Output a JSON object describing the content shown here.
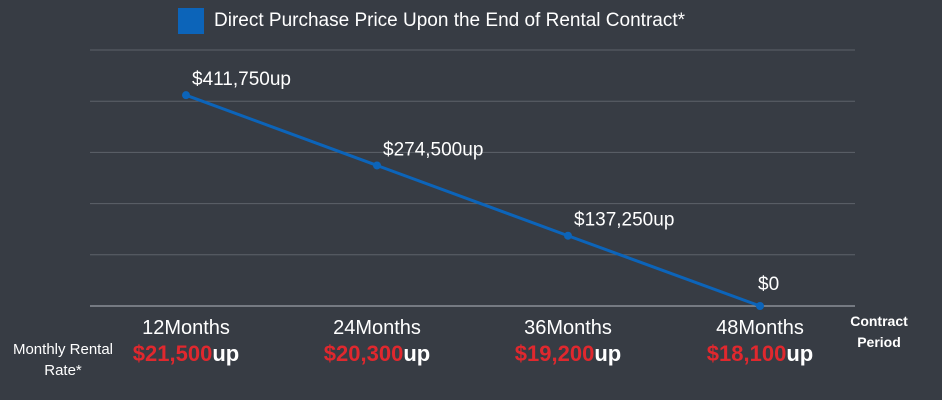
{
  "chart_data": {
    "type": "line",
    "series": [
      {
        "name": "Direct Purchase Price Upon the End of Rental Contract*",
        "values": [
          411750,
          274500,
          137250,
          0
        ],
        "labels": [
          "$411,750up",
          "$274,500up",
          "$137,250up",
          "$0"
        ]
      }
    ],
    "categories": [
      "12Months",
      "24Months",
      "36Months",
      "48Months"
    ],
    "monthly_rates": [
      {
        "value": "$21,500",
        "suffix": "up"
      },
      {
        "value": "$20,300",
        "suffix": "up"
      },
      {
        "value": "$19,200",
        "suffix": "up"
      },
      {
        "value": "$18,100",
        "suffix": "up"
      }
    ],
    "xlabel": "Contract Period",
    "row_label": "Monthly Rental Rate*",
    "ylim": [
      0,
      500000
    ],
    "grid": true,
    "legend_position": "top-center",
    "colors": {
      "background": "#373c44",
      "line": "#0c64b9",
      "grid": "#5d626a",
      "rate": "#e0282e",
      "text": "#ffffff"
    }
  }
}
